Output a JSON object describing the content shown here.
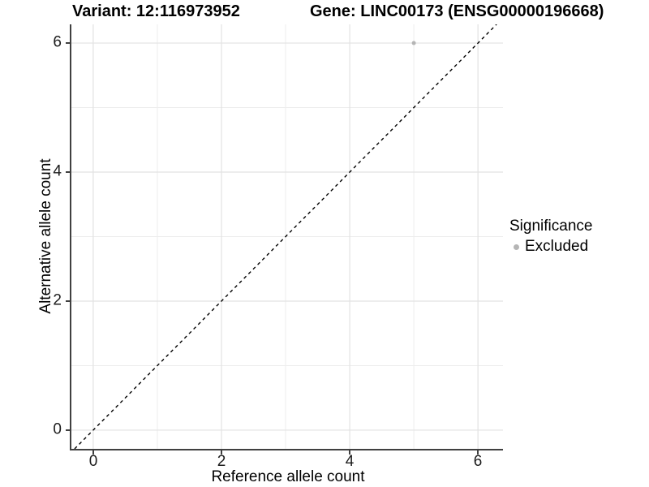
{
  "titles": {
    "variant": "Variant: 12:116973952",
    "gene": "Gene: LINC00173 (ENSG00000196668)"
  },
  "axes": {
    "x": {
      "label": "Reference allele count",
      "ticks": [
        "0",
        "2",
        "4",
        "6"
      ]
    },
    "y": {
      "label": "Alternative allele count",
      "ticks": [
        "6",
        "4",
        "2",
        "0"
      ]
    }
  },
  "legend": {
    "title": "Significance",
    "items": [
      {
        "label": "Excluded",
        "color": "#b5b5b5"
      }
    ]
  },
  "chart_data": {
    "type": "scatter",
    "title_left": "Variant: 12:116973952",
    "title_right": "Gene: LINC00173 (ENSG00000196668)",
    "xlabel": "Reference allele count",
    "ylabel": "Alternative allele count",
    "xlim": [
      -0.34,
      6.39
    ],
    "ylim": [
      -0.29,
      6.29
    ],
    "x_major_ticks": [
      0,
      2,
      4,
      6
    ],
    "y_major_ticks": [
      0,
      2,
      4,
      6
    ],
    "x_minor_gridlines": [
      1,
      3,
      5
    ],
    "y_minor_gridlines": [
      1,
      3,
      5
    ],
    "grid_major_color": "#e2e2e2",
    "grid_minor_color": "#ededed",
    "background": "#ffffff",
    "series": [
      {
        "name": "Excluded",
        "color": "#b5b5b5",
        "point_radius": 2.5,
        "points": [
          {
            "x": 5,
            "y": 6
          }
        ]
      }
    ],
    "reference_line": {
      "type": "identity",
      "equation": "y = x",
      "style": "dashed",
      "color": "#000000"
    },
    "legend_position": "right"
  }
}
